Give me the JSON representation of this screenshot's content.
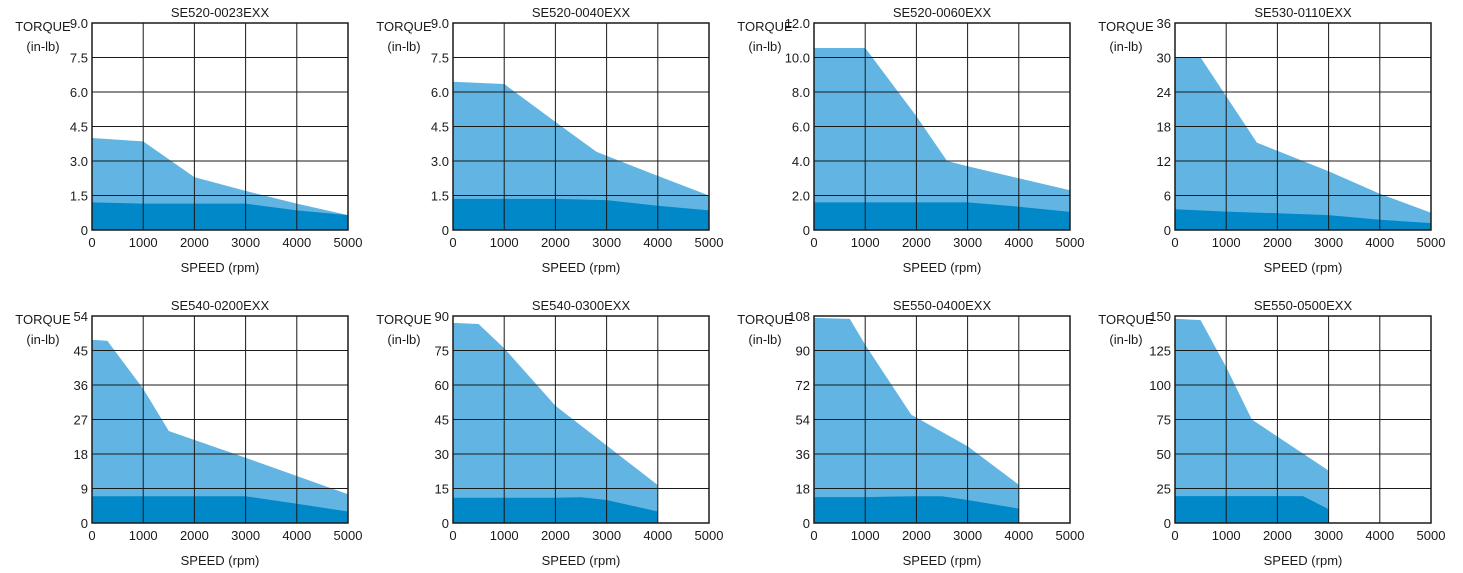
{
  "y_axis_label": "TORQUE",
  "y_axis_unit": "(in-lb)",
  "x_axis_label": "SPEED (rpm)",
  "colors": {
    "peak": "#62b5e2",
    "continuous": "#0088c8",
    "grid": "#1a1a1a"
  },
  "chart_data": [
    {
      "type": "area",
      "title": "SE520-0023EXX",
      "xlabel": "SPEED (rpm)",
      "ylabel": "TORQUE (in-lb)",
      "xlim": [
        0,
        5000
      ],
      "ylim": [
        0,
        9.0
      ],
      "x_ticks": [
        "0",
        "1000",
        "2000",
        "3000",
        "4000",
        "5000"
      ],
      "y_ticks": [
        "0",
        "1.5",
        "3.0",
        "4.5",
        "6.0",
        "7.5",
        "9.0"
      ],
      "series": [
        {
          "values": [
            [
              0,
              4.0
            ],
            [
              1000,
              3.85
            ],
            [
              2000,
              2.3
            ],
            [
              3000,
              1.7
            ],
            [
              4000,
              1.15
            ],
            [
              5000,
              0.65
            ]
          ]
        },
        {
          "values": [
            [
              0,
              1.2
            ],
            [
              1000,
              1.15
            ],
            [
              2000,
              1.15
            ],
            [
              3000,
              1.15
            ],
            [
              4000,
              0.85
            ],
            [
              5000,
              0.65
            ]
          ]
        }
      ]
    },
    {
      "type": "area",
      "title": "SE520-0040EXX",
      "xlabel": "SPEED (rpm)",
      "ylabel": "TORQUE (in-lb)",
      "xlim": [
        0,
        5000
      ],
      "ylim": [
        0,
        9.0
      ],
      "x_ticks": [
        "0",
        "1000",
        "2000",
        "3000",
        "4000",
        "5000"
      ],
      "y_ticks": [
        "0",
        "1.5",
        "3.0",
        "4.5",
        "6.0",
        "7.5",
        "9.0"
      ],
      "series": [
        {
          "values": [
            [
              0,
              6.45
            ],
            [
              1000,
              6.35
            ],
            [
              2000,
              4.7
            ],
            [
              2800,
              3.4
            ],
            [
              4000,
              2.35
            ],
            [
              5000,
              1.5
            ]
          ]
        },
        {
          "values": [
            [
              0,
              1.35
            ],
            [
              1000,
              1.35
            ],
            [
              2000,
              1.35
            ],
            [
              3000,
              1.3
            ],
            [
              4000,
              1.05
            ],
            [
              5000,
              0.85
            ]
          ]
        }
      ]
    },
    {
      "type": "area",
      "title": "SE520-0060EXX",
      "xlabel": "SPEED (rpm)",
      "ylabel": "TORQUE (in-lb)",
      "xlim": [
        0,
        5000
      ],
      "ylim": [
        0,
        12.0
      ],
      "x_ticks": [
        "0",
        "1000",
        "2000",
        "3000",
        "4000",
        "5000"
      ],
      "y_ticks": [
        "0",
        "2.0",
        "4.0",
        "6.0",
        "8.0",
        "10.0",
        "12.0"
      ],
      "series": [
        {
          "values": [
            [
              0,
              10.55
            ],
            [
              1000,
              10.55
            ],
            [
              2000,
              6.6
            ],
            [
              2600,
              4.0
            ],
            [
              3000,
              3.7
            ],
            [
              4000,
              3.0
            ],
            [
              5000,
              2.3
            ]
          ]
        },
        {
          "values": [
            [
              0,
              1.6
            ],
            [
              1000,
              1.6
            ],
            [
              2000,
              1.6
            ],
            [
              3000,
              1.6
            ],
            [
              4000,
              1.35
            ],
            [
              5000,
              1.05
            ]
          ]
        }
      ]
    },
    {
      "type": "area",
      "title": "SE530-0110EXX",
      "xlabel": "SPEED (rpm)",
      "ylabel": "TORQUE (in-lb)",
      "xlim": [
        0,
        5000
      ],
      "ylim": [
        0,
        36
      ],
      "x_ticks": [
        "0",
        "1000",
        "2000",
        "3000",
        "4000",
        "5000"
      ],
      "y_ticks": [
        "0",
        "6",
        "12",
        "18",
        "24",
        "30",
        "36"
      ],
      "series": [
        {
          "values": [
            [
              0,
              30
            ],
            [
              500,
              30
            ],
            [
              1600,
              15.2
            ],
            [
              3000,
              10.2
            ],
            [
              4000,
              6.3
            ],
            [
              5000,
              3.0
            ]
          ]
        },
        {
          "values": [
            [
              0,
              3.6
            ],
            [
              1000,
              3.2
            ],
            [
              2000,
              2.9
            ],
            [
              3000,
              2.6
            ],
            [
              4000,
              1.8
            ],
            [
              5000,
              1.2
            ]
          ]
        }
      ]
    },
    {
      "type": "area",
      "title": "SE540-0200EXX",
      "xlabel": "SPEED (rpm)",
      "ylabel": "TORQUE (in-lb)",
      "xlim": [
        0,
        5000
      ],
      "ylim": [
        0,
        54
      ],
      "x_ticks": [
        "0",
        "1000",
        "2000",
        "3000",
        "4000",
        "5000"
      ],
      "y_ticks": [
        "0",
        "9",
        "18",
        "27",
        "36",
        "45",
        "54"
      ],
      "series": [
        {
          "values": [
            [
              0,
              47.8
            ],
            [
              300,
              47.5
            ],
            [
              1000,
              35
            ],
            [
              1500,
              24
            ],
            [
              3000,
              17
            ],
            [
              5000,
              7.5
            ]
          ]
        },
        {
          "values": [
            [
              0,
              7.0
            ],
            [
              1000,
              7.0
            ],
            [
              2000,
              7.0
            ],
            [
              3000,
              7.0
            ],
            [
              4000,
              5.0
            ],
            [
              5000,
              3.0
            ]
          ]
        }
      ]
    },
    {
      "type": "area",
      "title": "SE540-0300EXX",
      "xlabel": "SPEED (rpm)",
      "ylabel": "TORQUE (in-lb)",
      "xlim": [
        0,
        5000
      ],
      "ylim": [
        0,
        90
      ],
      "x_ticks": [
        "0",
        "1000",
        "2000",
        "3000",
        "4000",
        "5000"
      ],
      "y_ticks": [
        "0",
        "15",
        "30",
        "45",
        "60",
        "75",
        "90"
      ],
      "series": [
        {
          "values": [
            [
              0,
              87
            ],
            [
              500,
              86.5
            ],
            [
              1000,
              76
            ],
            [
              2000,
              51
            ],
            [
              4000,
              16.5
            ]
          ]
        },
        {
          "values": [
            [
              0,
              11
            ],
            [
              1000,
              11
            ],
            [
              2000,
              11
            ],
            [
              2500,
              11.2
            ],
            [
              3000,
              10
            ],
            [
              4000,
              5
            ]
          ]
        }
      ]
    },
    {
      "type": "area",
      "title": "SE550-0400EXX",
      "xlabel": "SPEED (rpm)",
      "ylabel": "TORQUE (in-lb)",
      "xlim": [
        0,
        5000
      ],
      "ylim": [
        0,
        108
      ],
      "x_ticks": [
        "0",
        "1000",
        "2000",
        "3000",
        "4000",
        "5000"
      ],
      "y_ticks": [
        "0",
        "18",
        "36",
        "54",
        "72",
        "90",
        "108"
      ],
      "series": [
        {
          "values": [
            [
              0,
              107
            ],
            [
              700,
              106.5
            ],
            [
              1000,
              93
            ],
            [
              1900,
              56.5
            ],
            [
              3000,
              40
            ],
            [
              4000,
              20
            ]
          ]
        },
        {
          "values": [
            [
              0,
              13.5
            ],
            [
              1000,
              13.5
            ],
            [
              2000,
              14
            ],
            [
              2500,
              14
            ],
            [
              3000,
              12
            ],
            [
              4000,
              7.5
            ]
          ]
        }
      ]
    },
    {
      "type": "area",
      "title": "SE550-0500EXX",
      "xlabel": "SPEED (rpm)",
      "ylabel": "TORQUE (in-lb)",
      "xlim": [
        0,
        5000
      ],
      "ylim": [
        0,
        150
      ],
      "x_ticks": [
        "0",
        "1000",
        "2000",
        "3000",
        "4000",
        "5000"
      ],
      "y_ticks": [
        "0",
        "25",
        "50",
        "75",
        "100",
        "125",
        "150"
      ],
      "series": [
        {
          "values": [
            [
              0,
              148
            ],
            [
              500,
              147
            ],
            [
              1000,
              113
            ],
            [
              1500,
              75
            ],
            [
              3000,
              38
            ]
          ]
        },
        {
          "values": [
            [
              0,
              19.5
            ],
            [
              1000,
              19.5
            ],
            [
              2000,
              19.5
            ],
            [
              2500,
              19.5
            ],
            [
              3000,
              10
            ]
          ]
        }
      ]
    }
  ]
}
